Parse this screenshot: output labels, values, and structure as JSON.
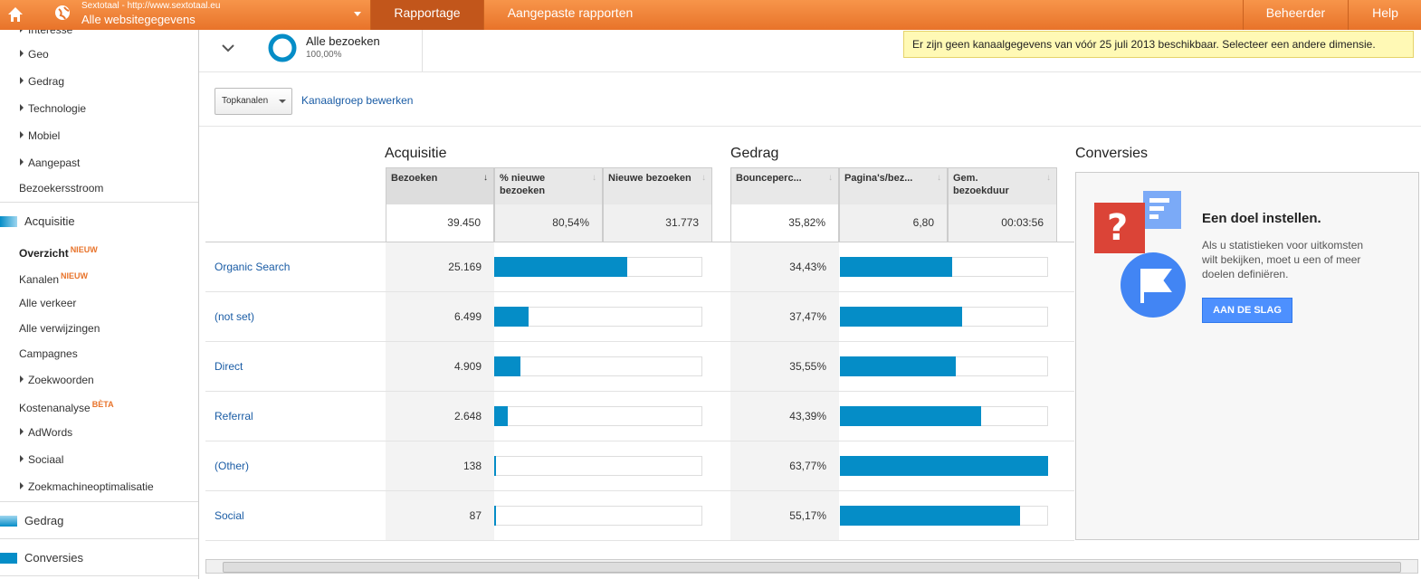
{
  "header": {
    "site_url": "Sextotaal - http://www.sextotaal.eu",
    "property": "Alle websitegegevens",
    "tabs": [
      "Rapportage",
      "Aangepaste rapporten"
    ],
    "right": [
      "Beheerder",
      "Help"
    ]
  },
  "sidebar": {
    "top_items": [
      "Interesse",
      "Geo",
      "Gedrag",
      "Technologie",
      "Mobiel",
      "Aangepast"
    ],
    "flow": "Bezoekersstroom",
    "acquisition": {
      "title": "Acquisitie",
      "items": [
        {
          "label": "Overzicht",
          "badge": "NIEUW"
        },
        {
          "label": "Kanalen",
          "badge": "NIEUW"
        },
        {
          "label": "Alle verkeer"
        },
        {
          "label": "Alle verwijzingen"
        },
        {
          "label": "Campagnes"
        },
        {
          "label": "Zoekwoorden"
        },
        {
          "label": "Kostenanalyse",
          "badge": "BÈTA"
        },
        {
          "label": "AdWords"
        },
        {
          "label": "Sociaal"
        },
        {
          "label": "Zoekmachineoptimalisatie"
        }
      ]
    },
    "sections": [
      "Gedrag",
      "Conversies"
    ]
  },
  "segment": {
    "name": "Alle bezoeken",
    "share": "100,00%"
  },
  "notice": "Er zijn geen kanaalgegevens van vóór 25 juli 2013 beschikbaar. Selecteer een andere dimensie.",
  "toolbar": {
    "dropdown": "Topkanalen",
    "link": "Kanaalgroep bewerken"
  },
  "table": {
    "groups": [
      "Acquisitie",
      "Gedrag",
      "Conversies"
    ],
    "columns": [
      "Bezoeken",
      "% nieuwe bezoeken",
      "Nieuwe bezoeken",
      "Bouncepercentage",
      "Pagina's/bez...",
      "Gem. bezoekduur"
    ],
    "column_labels": [
      "Bezoeken",
      "% nieuwe bezoeken",
      "Nieuwe bezoeken",
      "Bounceperc...",
      "Pagina's/bez...",
      "Gem. bezoekduur"
    ],
    "totals": [
      "39.450",
      "80,54%",
      "31.773",
      "35,82%",
      "6,80",
      "00:03:56"
    ],
    "rows": [
      {
        "channel": "Organic Search",
        "visits": "25.169",
        "bounce": "34,43%"
      },
      {
        "channel": "(not set)",
        "visits": "6.499",
        "bounce": "37,47%"
      },
      {
        "channel": "Direct",
        "visits": "4.909",
        "bounce": "35,55%"
      },
      {
        "channel": "Referral",
        "visits": "2.648",
        "bounce": "43,39%"
      },
      {
        "channel": "(Other)",
        "visits": "138",
        "bounce": "63,77%"
      },
      {
        "channel": "Social",
        "visits": "87",
        "bounce": "55,17%"
      }
    ]
  },
  "goal": {
    "title": "Een doel instellen.",
    "text": "Als u statistieken voor uitkomsten wilt bekijken, moet u een of meer doelen definiëren.",
    "button": "AAN DE SLAG"
  }
}
